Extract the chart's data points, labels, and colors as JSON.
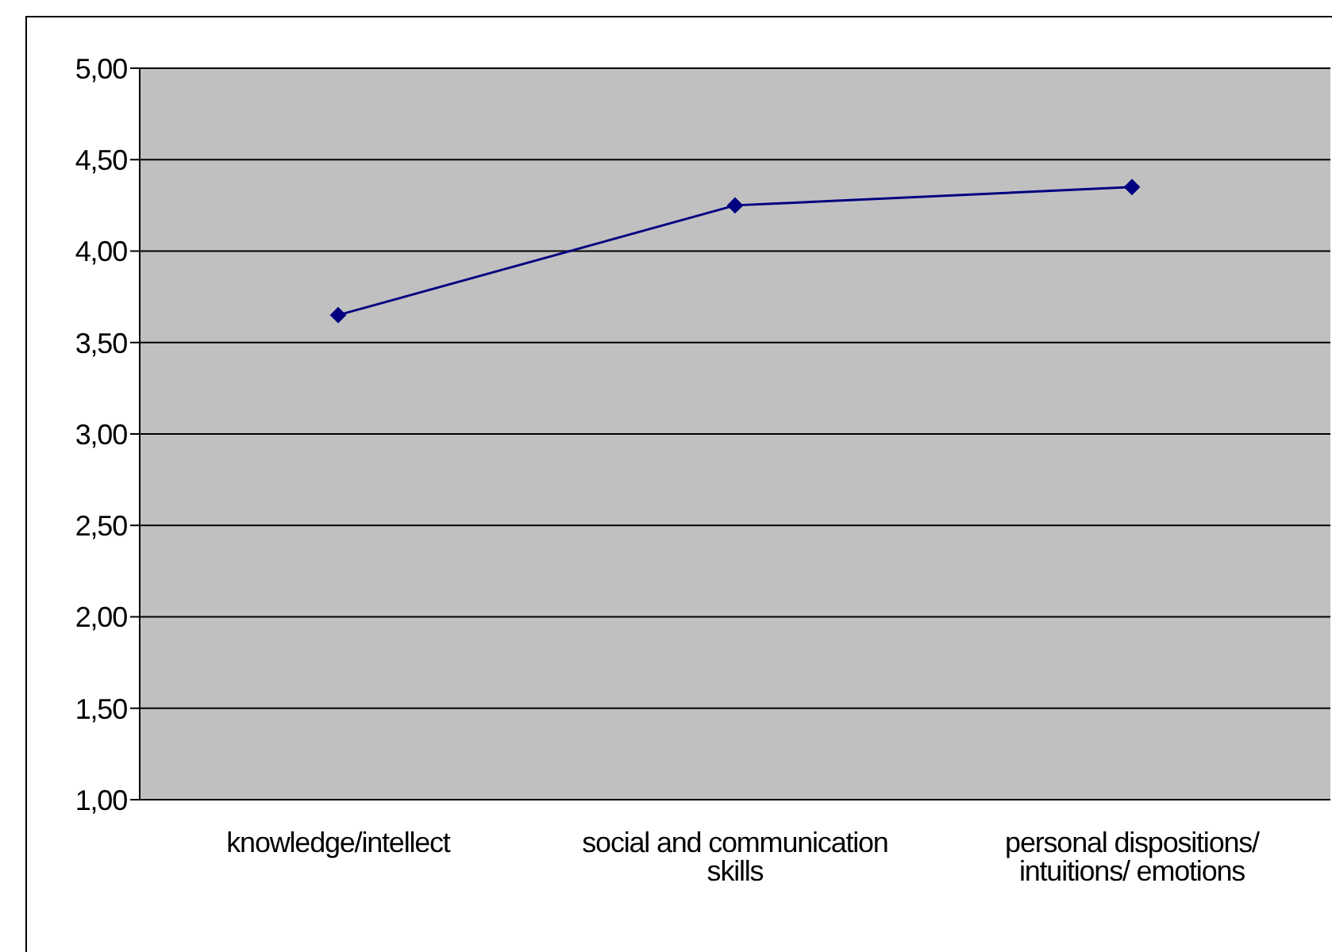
{
  "chart_data": {
    "type": "line",
    "categories": [
      "knowledge/intellect",
      "social and communication skills",
      "personal dispositions/ intuitions/ emotions"
    ],
    "series": [
      {
        "color": "#000080",
        "values": [
          3.65,
          4.25,
          4.35
        ]
      }
    ],
    "ylim": [
      1,
      5
    ],
    "yticks": [
      {
        "value": 1,
        "label": "1,00"
      },
      {
        "value": 1.5,
        "label": "1,50"
      },
      {
        "value": 2,
        "label": "2,00"
      },
      {
        "value": 2.5,
        "label": "2,50"
      },
      {
        "value": 3,
        "label": "3,00"
      },
      {
        "value": 3.5,
        "label": "3,50"
      },
      {
        "value": 4,
        "label": "4,00"
      },
      {
        "value": 4.5,
        "label": "4,50"
      },
      {
        "value": 5,
        "label": "5,00"
      }
    ],
    "grid": "y",
    "marker": "diamond",
    "line_style": "solid"
  }
}
